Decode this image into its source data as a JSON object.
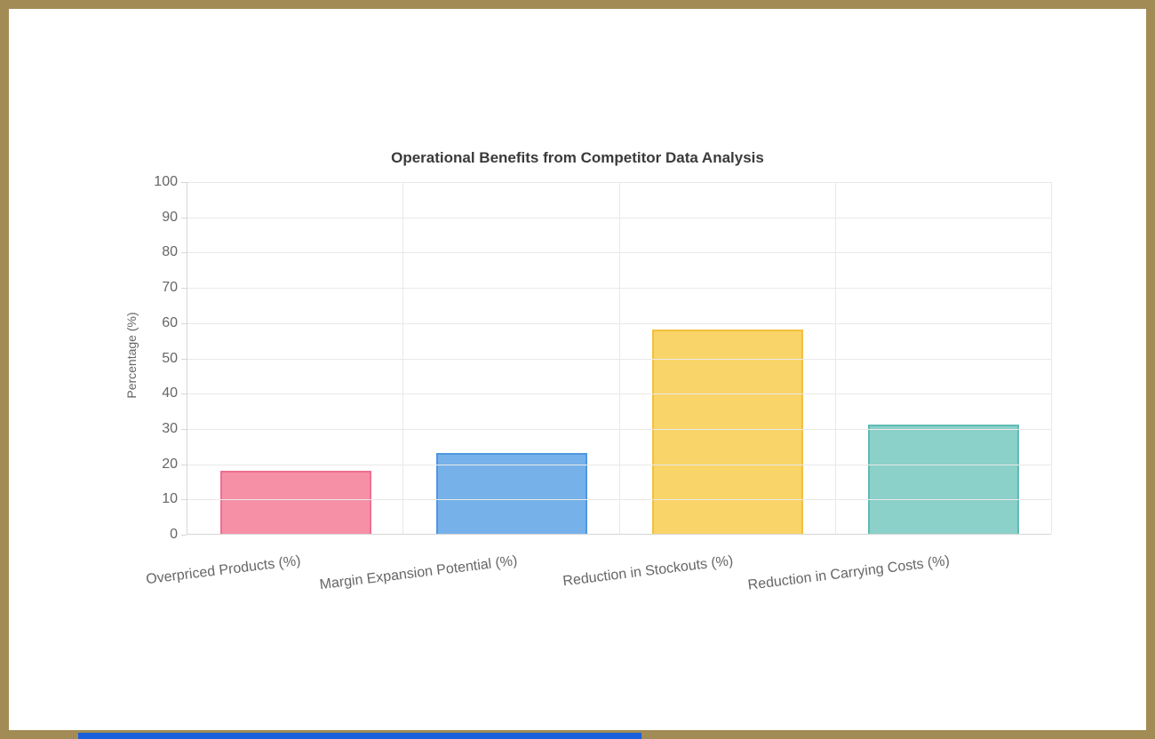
{
  "page": {
    "frame_color": "#a28b55",
    "background": "#ffffff",
    "bottom_strip_color": "#1a5fdc"
  },
  "chart_data": {
    "type": "bar",
    "title": "Operational Benefits from Competitor Data Analysis",
    "categories": [
      "Overpriced Products (%)",
      "Margin Expansion Potential (%)",
      "Reduction in Stockouts (%)",
      "Reduction in Carrying Costs (%)"
    ],
    "values": [
      18,
      23,
      58,
      31
    ],
    "xlabel": "",
    "ylabel": "Percentage (%)",
    "ylim": [
      0,
      100
    ],
    "ytick_step": 10,
    "grid": true,
    "legend": "none",
    "bar_colors": [
      "#f590a7",
      "#76b1e9",
      "#f9d468",
      "#8bd0c9"
    ],
    "bar_border_colors": [
      "#ef6e92",
      "#4f97e2",
      "#f3c03e",
      "#5fbcb3"
    ]
  }
}
